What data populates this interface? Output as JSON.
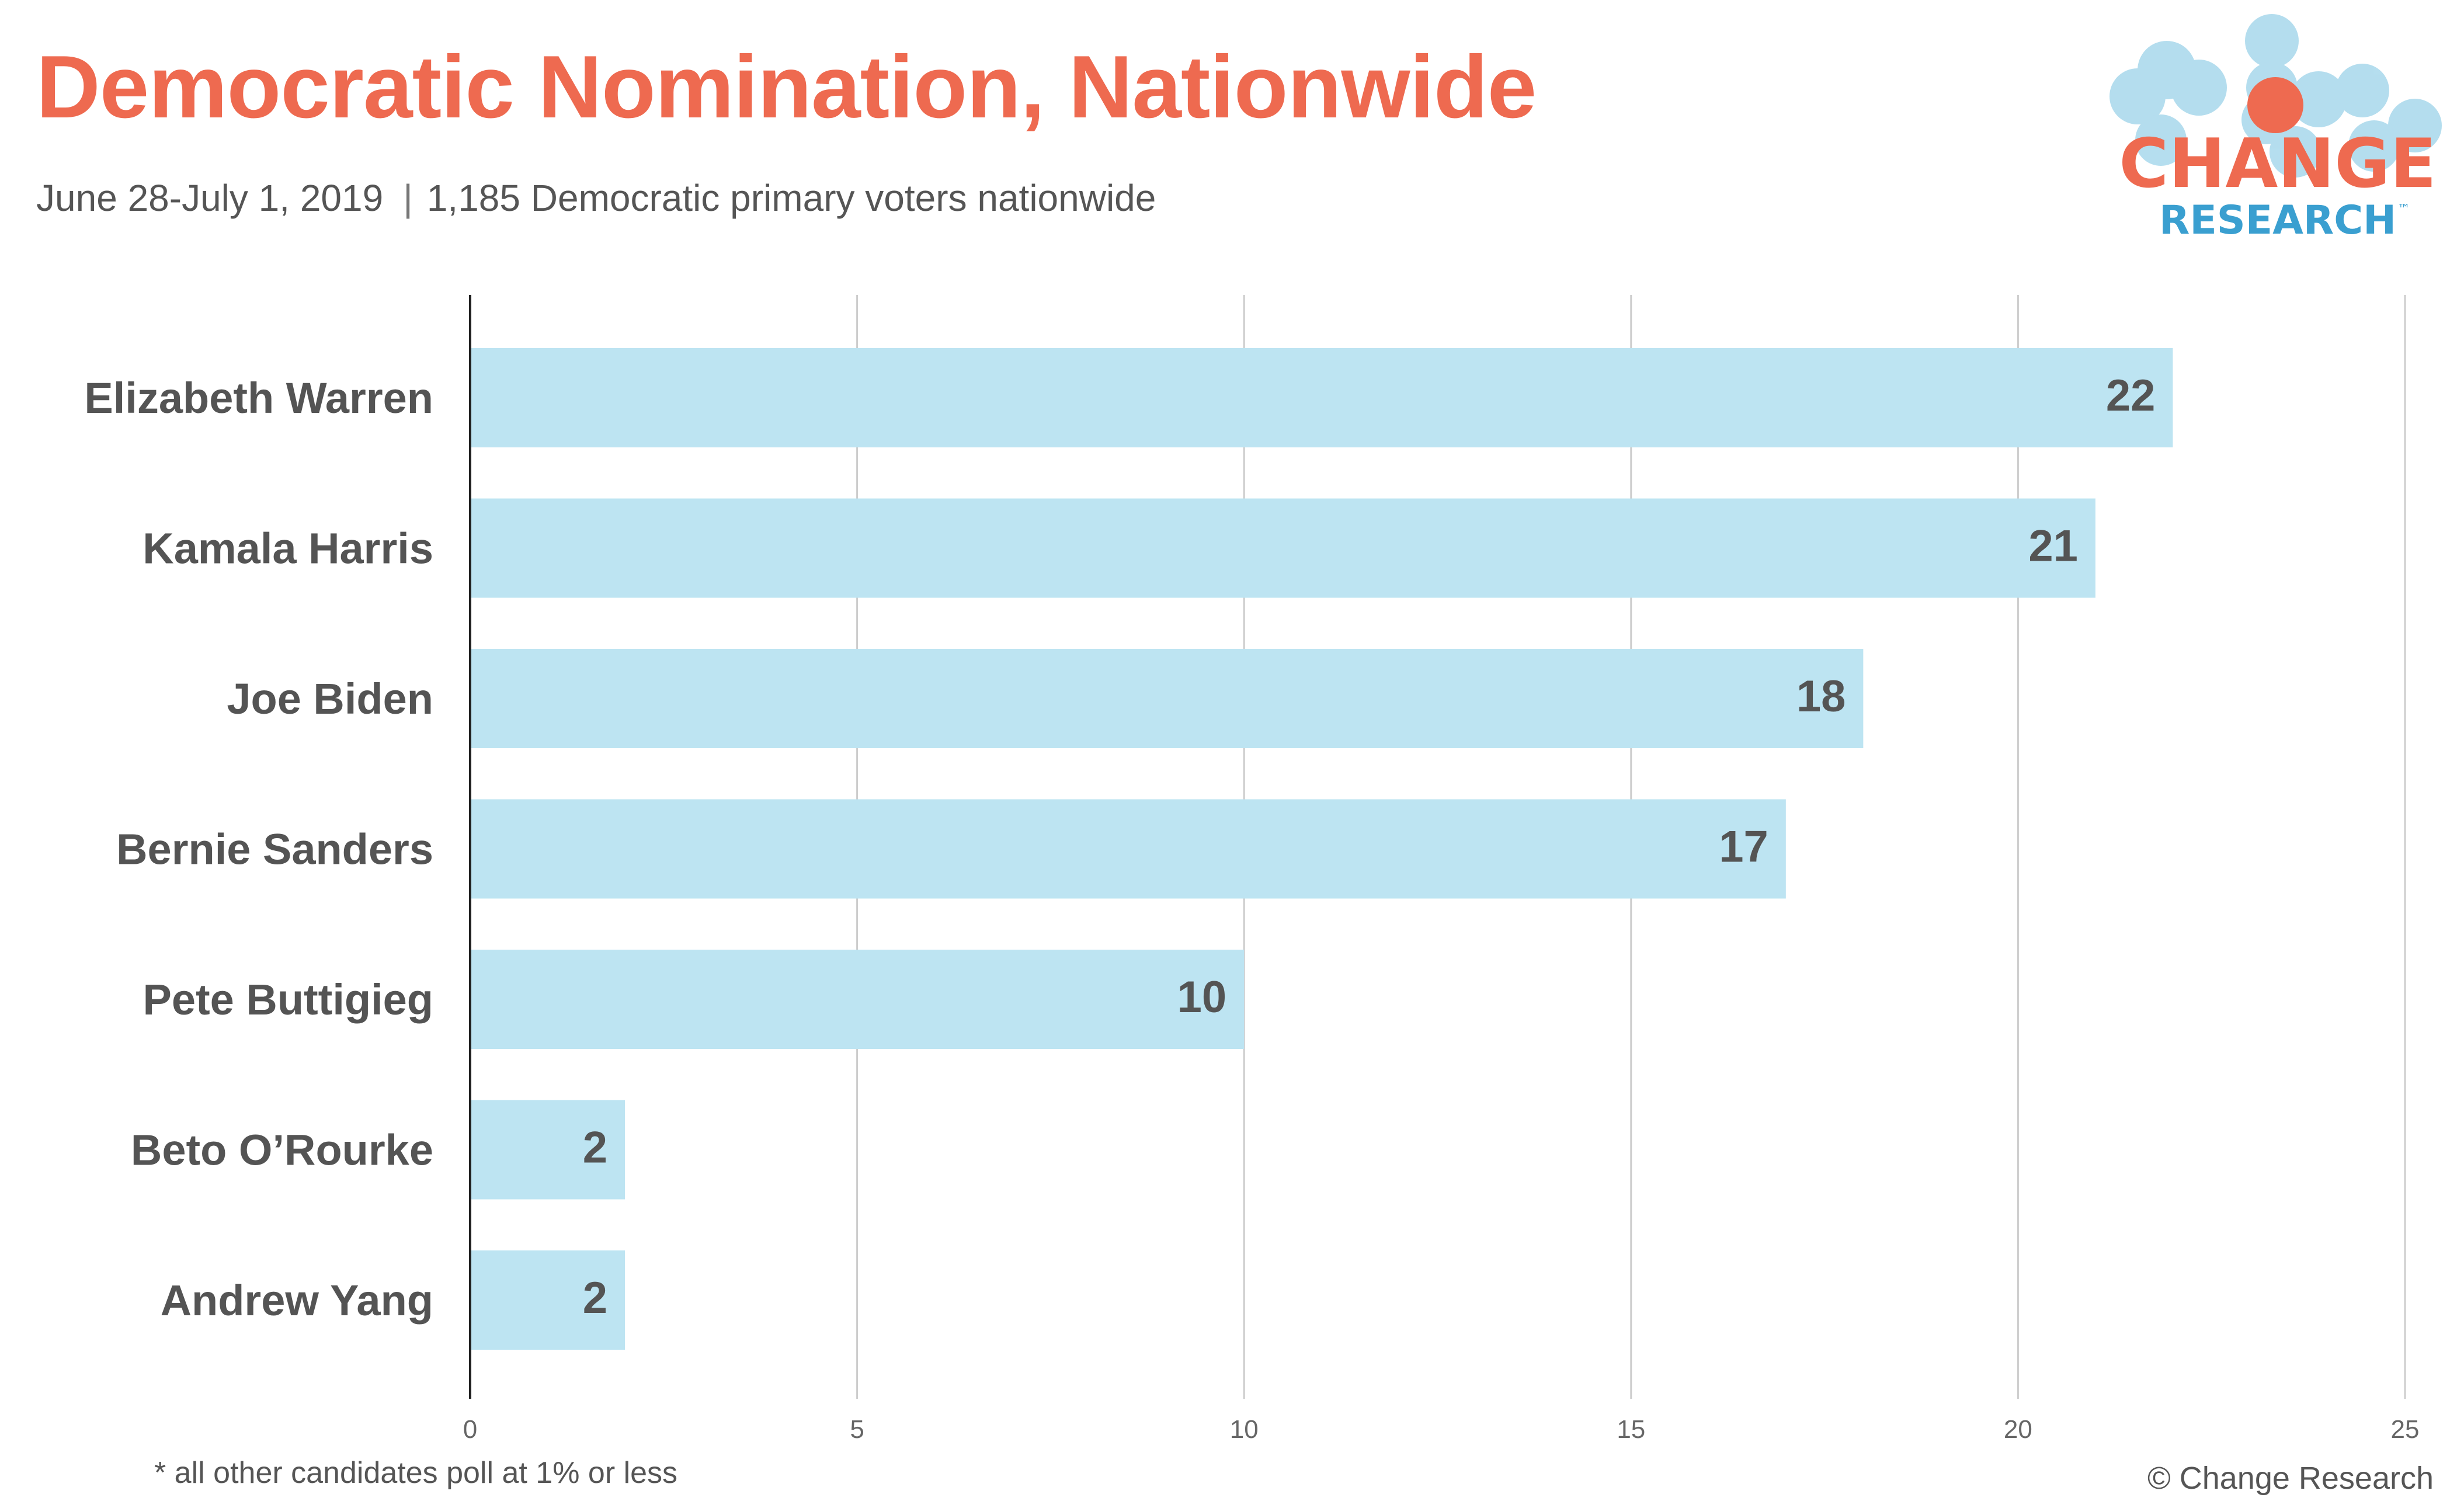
{
  "header": {
    "title": "Democratic Nomination, Nationwide",
    "subtitle_date": "June 28-July 1, 2019",
    "subtitle_separator": "|",
    "subtitle_sample": "1,185 Democratic primary voters nationwide"
  },
  "logo": {
    "line1": "CHANGE",
    "line2": "RESEARCH",
    "tm": "™",
    "colors": {
      "primary": "#ee6a50",
      "secondary": "#3a9fd0",
      "bubbles": "#a8d8ec"
    }
  },
  "footer": {
    "footnote": "* all other candidates poll at 1% or less",
    "copyright": "© Change Research"
  },
  "colors": {
    "bar": "#bde4f2",
    "title": "#ee6a50",
    "text": "#555555",
    "grid": "#cccccc"
  },
  "chart_data": {
    "type": "bar",
    "orientation": "horizontal",
    "categories": [
      "Elizabeth Warren",
      "Kamala Harris",
      "Joe Biden",
      "Bernie Sanders",
      "Pete Buttigieg",
      "Beto O’Rourke",
      "Andrew Yang"
    ],
    "values": [
      22,
      21,
      18,
      17,
      10,
      2,
      2
    ],
    "xlim": [
      0,
      25
    ],
    "xticks": [
      0,
      5,
      10,
      15,
      20,
      25
    ],
    "grid": true,
    "data_labels": true,
    "legend": "none"
  }
}
